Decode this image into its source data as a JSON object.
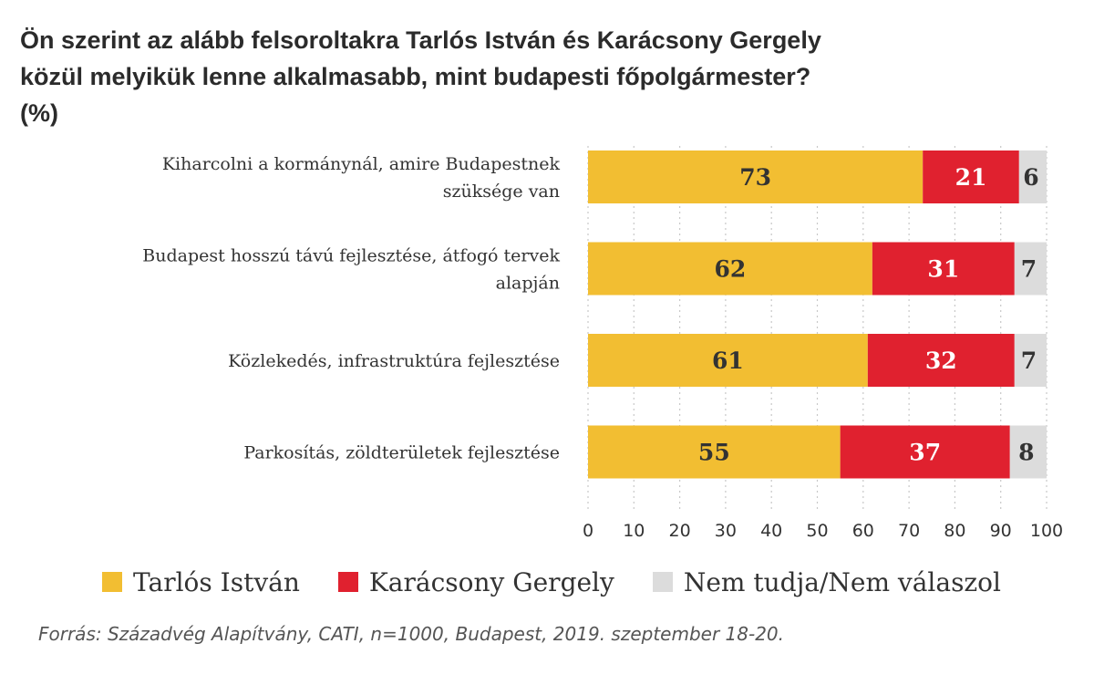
{
  "chart_data": {
    "type": "bar",
    "orientation": "horizontal",
    "stacked": true,
    "title_lines": [
      "Ön szerint az alább felsoroltakra Tarlós István és Karácsony Gergely",
      "közül melyikük lenne alkalmasabb, mint budapesti főpolgármester?",
      "(%)"
    ],
    "categories": [
      [
        "Kiharcolni a kormánynál, amire Budapestnek",
        "szüksége van"
      ],
      [
        "Budapest hosszú távú fejlesztése, átfogó tervek",
        "alapján"
      ],
      [
        "Közlekedés, infrastruktúra fejlesztése"
      ],
      [
        "Parkosítás, zöldterületek fejlesztése"
      ]
    ],
    "series": [
      {
        "name": "Tarlós István",
        "color": "#f2be32",
        "label_color": "#333333",
        "values": [
          73,
          62,
          61,
          55
        ]
      },
      {
        "name": "Karácsony Gergely",
        "color": "#e0212f",
        "label_color": "#ffffff",
        "values": [
          21,
          31,
          32,
          37
        ]
      },
      {
        "name": "Nem tudja/Nem válaszol",
        "color": "#dcdcdc",
        "label_color": "#333333",
        "values": [
          6,
          7,
          7,
          8
        ]
      }
    ],
    "xlim": [
      0,
      100
    ],
    "xticks": [
      "0",
      "10",
      "20",
      "30",
      "40",
      "50",
      "60",
      "70",
      "80",
      "90",
      "100"
    ],
    "grid": true,
    "legend_position": "bottom-left",
    "source": "Forrás: Századvég Alapítvány, CATI, n=1000, Budapest, 2019. szeptember 18-20."
  }
}
